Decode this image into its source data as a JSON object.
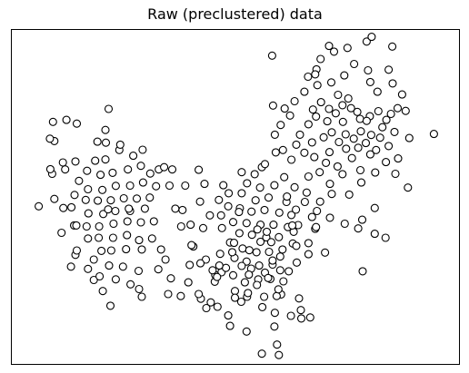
{
  "chart_data": {
    "type": "scatter",
    "title": "Raw (preclustered) data",
    "xlabel": "",
    "ylabel": "",
    "xlim": [
      0,
      100
    ],
    "ylim": [
      0,
      100
    ],
    "axis_ticks": "none",
    "grid": false,
    "legend": "none",
    "marker": "open-circle",
    "marker_edge_color": "#000000",
    "marker_face_color": "#ffffff",
    "points": [
      [
        76.5,
        89.7
      ],
      [
        79.6,
        87.8
      ],
      [
        84.2,
        88.0
      ],
      [
        68.1,
        88.1
      ],
      [
        74.3,
        86.3
      ],
      [
        71.4,
        84.2
      ],
      [
        68.3,
        83.4
      ],
      [
        72.9,
        80.5
      ],
      [
        81.7,
        81.4
      ],
      [
        87.2,
        80.6
      ],
      [
        75.2,
        79.4
      ],
      [
        70.9,
        76.3
      ],
      [
        65.4,
        81.4
      ],
      [
        58.2,
        92.2
      ],
      [
        63.2,
        78.6
      ],
      [
        86.2,
        76.5
      ],
      [
        61.0,
        76.4
      ],
      [
        83.7,
        73.0
      ],
      [
        80.0,
        74.1
      ],
      [
        82.8,
        70.8
      ],
      [
        77.8,
        73.3
      ],
      [
        74.0,
        72.4
      ],
      [
        70.5,
        72.6
      ],
      [
        68.0,
        74.0
      ],
      [
        66.3,
        71.7
      ],
      [
        73.9,
        77.4
      ],
      [
        77.2,
        75.4
      ],
      [
        78.0,
        69.6
      ],
      [
        80.3,
        68.5
      ],
      [
        74.6,
        68.7
      ],
      [
        71.5,
        69.3
      ],
      [
        64.4,
        68.6
      ],
      [
        60.1,
        71.5
      ],
      [
        62.2,
        74.3
      ],
      [
        67.3,
        76.1
      ],
      [
        69.1,
        78.3
      ],
      [
        72.4,
        75.0
      ],
      [
        75.8,
        76.5
      ],
      [
        79.3,
        72.7
      ],
      [
        81.9,
        75.6
      ],
      [
        84.7,
        74.8
      ],
      [
        85.5,
        69.4
      ],
      [
        82.3,
        67.7
      ],
      [
        79.1,
        66.1
      ],
      [
        76.4,
        67.4
      ],
      [
        73.1,
        66.4
      ],
      [
        69.7,
        67.8
      ],
      [
        67.1,
        66.3
      ],
      [
        63.6,
        65.6
      ],
      [
        58.8,
        68.6
      ],
      [
        60.6,
        64.0
      ],
      [
        71.0,
        63.4
      ],
      [
        74.7,
        64.4
      ],
      [
        77.4,
        64.7
      ],
      [
        81.4,
        64.0
      ],
      [
        84.2,
        65.2
      ],
      [
        86.3,
        61.5
      ],
      [
        83.6,
        60.4
      ],
      [
        80.1,
        62.7
      ],
      [
        76.0,
        61.6
      ],
      [
        72.8,
        59.1
      ],
      [
        70.2,
        60.2
      ],
      [
        67.6,
        61.9
      ],
      [
        65.4,
        63.2
      ],
      [
        62.5,
        61.1
      ],
      [
        68.8,
        57.4
      ],
      [
        73.9,
        56.8
      ],
      [
        77.9,
        58.0
      ],
      [
        71.1,
        53.9
      ],
      [
        78.1,
        54.3
      ],
      [
        81.2,
        57.3
      ],
      [
        85.7,
        56.9
      ],
      [
        88.5,
        52.8
      ],
      [
        94.3,
        68.8
      ],
      [
        88.8,
        67.6
      ],
      [
        88.0,
        75.7
      ],
      [
        85.1,
        83.9
      ],
      [
        80.1,
        84.3
      ],
      [
        66.2,
        85.9
      ],
      [
        69.0,
        91.2
      ],
      [
        72.0,
        93.4
      ],
      [
        75.0,
        94.5
      ],
      [
        70.9,
        95.1
      ],
      [
        79.3,
        96.4
      ],
      [
        85.0,
        94.9
      ],
      [
        80.4,
        97.8
      ],
      [
        67.8,
        86.6
      ],
      [
        58.4,
        77.3
      ],
      [
        14.3,
        60.6
      ],
      [
        18.7,
        60.8
      ],
      [
        21.0,
        61.2
      ],
      [
        24.1,
        64.0
      ],
      [
        27.2,
        62.3
      ],
      [
        28.9,
        59.3
      ],
      [
        26.0,
        58.2
      ],
      [
        22.6,
        57.2
      ],
      [
        19.9,
        56.6
      ],
      [
        16.9,
        57.8
      ],
      [
        15.1,
        54.8
      ],
      [
        17.1,
        52.3
      ],
      [
        20.3,
        52.1
      ],
      [
        23.3,
        53.3
      ],
      [
        26.5,
        53.4
      ],
      [
        29.4,
        54.3
      ],
      [
        32.3,
        53.2
      ],
      [
        30.9,
        49.8
      ],
      [
        28.0,
        49.5
      ],
      [
        25.1,
        49.6
      ],
      [
        22.2,
        49.0
      ],
      [
        19.3,
        48.9
      ],
      [
        16.6,
        49.1
      ],
      [
        14.1,
        50.6
      ],
      [
        13.4,
        46.9
      ],
      [
        17.2,
        45.1
      ],
      [
        20.5,
        44.9
      ],
      [
        23.2,
        45.8
      ],
      [
        26.5,
        45.8
      ],
      [
        29.8,
        46.5
      ],
      [
        31.8,
        42.7
      ],
      [
        28.9,
        42.4
      ],
      [
        25.9,
        42.7
      ],
      [
        22.8,
        42.0
      ],
      [
        19.6,
        41.2
      ],
      [
        16.8,
        41.2
      ],
      [
        14.0,
        41.5
      ],
      [
        17.1,
        37.6
      ],
      [
        19.5,
        37.8
      ],
      [
        22.7,
        37.8
      ],
      [
        25.8,
        38.6
      ],
      [
        28.5,
        37.1
      ],
      [
        31.4,
        37.6
      ],
      [
        33.4,
        34.3
      ],
      [
        29.1,
        34.3
      ],
      [
        25.6,
        34.4
      ],
      [
        22.3,
        34.0
      ],
      [
        20.1,
        33.9
      ],
      [
        18.4,
        31.3
      ],
      [
        14.3,
        32.7
      ],
      [
        14.6,
        34.0
      ],
      [
        21.8,
        29.5
      ],
      [
        24.9,
        29.2
      ],
      [
        28.4,
        27.9
      ],
      [
        23.3,
        25.4
      ],
      [
        20.4,
        21.9
      ],
      [
        29.1,
        20.2
      ],
      [
        26.6,
        23.9
      ],
      [
        17.1,
        28.5
      ],
      [
        18.4,
        25.2
      ],
      [
        11.6,
        46.7
      ],
      [
        11.5,
        60.3
      ],
      [
        9.6,
        49.4
      ],
      [
        9.1,
        56.9
      ],
      [
        6.1,
        47.2
      ],
      [
        9.6,
        66.7
      ],
      [
        12.0,
        58.2
      ],
      [
        11.2,
        39.3
      ],
      [
        21.6,
        46.3
      ],
      [
        24.3,
        65.6
      ],
      [
        21.0,
        70.0
      ],
      [
        14.6,
        71.9
      ],
      [
        12.3,
        73.0
      ],
      [
        9.3,
        72.4
      ],
      [
        8.7,
        58.3
      ],
      [
        8.6,
        67.4
      ],
      [
        26.2,
        46.5
      ],
      [
        21.1,
        66.2
      ],
      [
        21.7,
        76.3
      ],
      [
        19.2,
        66.5
      ],
      [
        32.9,
        58.2
      ],
      [
        32.8,
        28.4
      ],
      [
        35.9,
        58.2
      ],
      [
        34.1,
        58.9
      ],
      [
        29.3,
        64.1
      ],
      [
        31.0,
        57.0
      ],
      [
        19.7,
        26.3
      ],
      [
        22.1,
        17.5
      ],
      [
        13.3,
        29.2
      ],
      [
        14.5,
        41.5
      ],
      [
        28.5,
        22.5
      ],
      [
        55.9,
        58.9
      ],
      [
        54.3,
        56.8
      ],
      [
        52.6,
        54.1
      ],
      [
        55.5,
        52.8
      ],
      [
        58.7,
        53.5
      ],
      [
        57.4,
        49.8
      ],
      [
        54.5,
        49.0
      ],
      [
        51.4,
        51.1
      ],
      [
        48.5,
        51.1
      ],
      [
        46.3,
        49.1
      ],
      [
        48.4,
        47.2
      ],
      [
        51.0,
        46.6
      ],
      [
        53.6,
        45.6
      ],
      [
        56.5,
        46.1
      ],
      [
        59.8,
        45.3
      ],
      [
        61.4,
        48.5
      ],
      [
        62.5,
        44.6
      ],
      [
        64.0,
        41.6
      ],
      [
        61.7,
        41.0
      ],
      [
        58.5,
        41.7
      ],
      [
        55.6,
        41.7
      ],
      [
        52.5,
        42.2
      ],
      [
        49.5,
        42.5
      ],
      [
        46.8,
        44.5
      ],
      [
        44.3,
        44.5
      ],
      [
        50.9,
        39.2
      ],
      [
        53.7,
        38.7
      ],
      [
        56.9,
        37.9
      ],
      [
        59.7,
        38.0
      ],
      [
        62.8,
        36.1
      ],
      [
        60.5,
        34.3
      ],
      [
        57.5,
        33.6
      ],
      [
        54.7,
        33.5
      ],
      [
        51.6,
        34.6
      ],
      [
        48.8,
        36.4
      ],
      [
        46.6,
        33.0
      ],
      [
        49.8,
        31.8
      ],
      [
        52.5,
        30.7
      ],
      [
        55.3,
        29.5
      ],
      [
        58.3,
        29.8
      ],
      [
        60.0,
        28.1
      ],
      [
        57.8,
        25.5
      ],
      [
        55.1,
        25.4
      ],
      [
        52.1,
        24.5
      ],
      [
        49.5,
        26.6
      ],
      [
        46.9,
        27.5
      ],
      [
        49.9,
        21.9
      ],
      [
        52.6,
        20.2
      ],
      [
        56.0,
        17.1
      ],
      [
        58.8,
        15.4
      ],
      [
        58.7,
        11.3
      ],
      [
        60.2,
        20.9
      ],
      [
        62.4,
        14.5
      ],
      [
        64.7,
        13.7
      ],
      [
        66.7,
        14.0
      ],
      [
        52.5,
        9.8
      ],
      [
        55.9,
        3.2
      ],
      [
        59.7,
        2.8
      ],
      [
        59.3,
        5.9
      ],
      [
        42.8,
        40.7
      ],
      [
        40.0,
        41.7
      ],
      [
        40.6,
        35.2
      ],
      [
        43.4,
        31.3
      ],
      [
        45.5,
        26.7
      ],
      [
        47.9,
        28.8
      ],
      [
        44.5,
        18.5
      ],
      [
        45.4,
        24.7
      ],
      [
        49.9,
        19.9
      ],
      [
        48.4,
        14.6
      ],
      [
        42.3,
        19.6
      ],
      [
        43.5,
        16.8
      ],
      [
        46.0,
        17.2
      ],
      [
        39.5,
        24.5
      ],
      [
        37.8,
        20.4
      ],
      [
        35.6,
        25.7
      ],
      [
        35.0,
        21.0
      ],
      [
        42.2,
        30.2
      ],
      [
        46.4,
        29.5
      ],
      [
        53.5,
        28.6
      ],
      [
        51.3,
        18.7
      ],
      [
        58.0,
        36.5
      ],
      [
        61.9,
        27.8
      ],
      [
        63.7,
        30.4
      ],
      [
        66.3,
        32.9
      ],
      [
        67.8,
        40.5
      ],
      [
        67.1,
        44.0
      ],
      [
        68.2,
        45.8
      ],
      [
        71.1,
        43.8
      ],
      [
        65.5,
        48.5
      ],
      [
        63.5,
        46.2
      ],
      [
        61.5,
        50.1
      ],
      [
        63.2,
        52.9
      ],
      [
        60.9,
        55.9
      ],
      [
        66.3,
        56.1
      ],
      [
        65.9,
        51.3
      ],
      [
        68.9,
        48.6
      ],
      [
        68.0,
        41.0
      ],
      [
        59.2,
        20.4
      ],
      [
        59.6,
        22.4
      ],
      [
        60.7,
        24.8
      ],
      [
        56.6,
        27.4
      ],
      [
        54.8,
        23.7
      ],
      [
        52.8,
        21.3
      ],
      [
        44.9,
        28.1
      ],
      [
        47.0,
        40.7
      ],
      [
        55.6,
        36.6
      ],
      [
        57.0,
        39.6
      ],
      [
        53.1,
        34.1
      ],
      [
        60.0,
        32.2
      ],
      [
        57.3,
        25.8
      ],
      [
        64.6,
        16.2
      ],
      [
        53.0,
        26.8
      ],
      [
        49.7,
        36.3
      ],
      [
        43.1,
        53.9
      ],
      [
        41.8,
        58.1
      ],
      [
        47.3,
        53.5
      ],
      [
        51.4,
        57.4
      ],
      [
        56.6,
        59.8
      ],
      [
        59.0,
        63.3
      ],
      [
        74.4,
        42.0
      ],
      [
        78.3,
        43.2
      ],
      [
        81.1,
        46.7
      ],
      [
        75.4,
        50.7
      ],
      [
        71.5,
        50.9
      ],
      [
        78.4,
        27.8
      ],
      [
        81.1,
        39.0
      ],
      [
        83.5,
        37.8
      ],
      [
        77.4,
        40.6
      ],
      [
        70.0,
        33.4
      ],
      [
        66.3,
        36.2
      ],
      [
        63.0,
        39.6
      ],
      [
        42.1,
        48.6
      ],
      [
        40.2,
        35.6
      ],
      [
        38.2,
        46.1
      ],
      [
        37.9,
        41.2
      ],
      [
        34.4,
        31.3
      ],
      [
        48.8,
        11.5
      ],
      [
        41.8,
        21.0
      ],
      [
        39.8,
        29.7
      ],
      [
        38.8,
        53.4
      ],
      [
        35.3,
        53.4
      ],
      [
        36.6,
        46.5
      ],
      [
        56.4,
        20.2
      ],
      [
        58.3,
        31.0
      ],
      [
        51.4,
        29.4
      ],
      [
        49.3,
        33.5
      ],
      [
        50.8,
        45.5
      ],
      [
        63.6,
        35.4
      ],
      [
        62.7,
        41.5
      ],
      [
        54.9,
        40.3
      ],
      [
        45.9,
        26.1
      ],
      [
        64.2,
        19.7
      ]
    ]
  }
}
